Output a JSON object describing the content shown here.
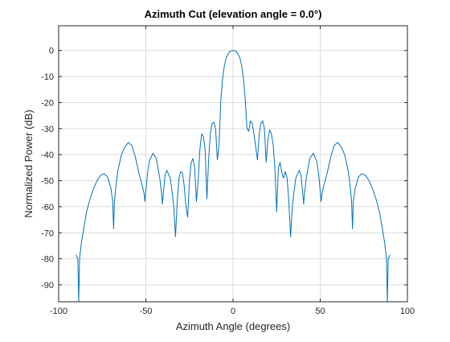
{
  "chart_data": {
    "type": "line",
    "title": "Azimuth Cut (elevation angle = 0.0°)",
    "xlabel": "Azimuth Angle (degrees)",
    "ylabel": "Normalized Power (dB)",
    "xlim": [
      -100,
      100
    ],
    "ylim": [
      -96.5,
      9.5
    ],
    "xticks": [
      -100,
      -50,
      0,
      50,
      100
    ],
    "xtick_labels": [
      "-100",
      "-50",
      "0",
      "50",
      "100"
    ],
    "yticks": [
      0,
      -10,
      -20,
      -30,
      -40,
      -50,
      -60,
      -70,
      -80,
      -90
    ],
    "ytick_labels": [
      "0",
      "-10",
      "-20",
      "-30",
      "-40",
      "-50",
      "-60",
      "-70",
      "-80",
      "-90"
    ],
    "grid": true,
    "series": [
      {
        "color": "#0072bd",
        "x": [
          -90,
          -89,
          -88.5,
          -88,
          -87,
          -86,
          -85,
          -84,
          -82,
          -80,
          -78,
          -76,
          -74,
          -72,
          -70,
          -69,
          -68.5,
          -68,
          -67,
          -66,
          -64,
          -62,
          -60,
          -58,
          -56,
          -54,
          -52,
          -51,
          -50.5,
          -50,
          -49,
          -48,
          -46,
          -44,
          -42,
          -41,
          -40.5,
          -40,
          -39,
          -38,
          -36,
          -35,
          -34,
          -33,
          -32,
          -31,
          -30,
          -29,
          -28,
          -27,
          -26,
          -25,
          -24,
          -23,
          -22,
          -21,
          -20,
          -19,
          -18,
          -17,
          -16,
          -15,
          -14,
          -13,
          -12,
          -11,
          -10,
          -9,
          -8,
          -7,
          -6,
          -5,
          -4,
          -3,
          -2,
          -1,
          0,
          1,
          2,
          3,
          4,
          5,
          6,
          7,
          8,
          9,
          10,
          11,
          12,
          13,
          14,
          15,
          16,
          17,
          18,
          19,
          20,
          21,
          22,
          23,
          24,
          25,
          26,
          27,
          28,
          29,
          30,
          31,
          32,
          33,
          34,
          35,
          36,
          38,
          39,
          40,
          40.5,
          41,
          42,
          44,
          46,
          48,
          49,
          50,
          50.5,
          51,
          52,
          54,
          56,
          58,
          60,
          62,
          64,
          66,
          67,
          68,
          68.5,
          69,
          70,
          72,
          74,
          76,
          78,
          80,
          82,
          84,
          85,
          86,
          87,
          88,
          88.5,
          89,
          90
        ],
        "y": [
          -78.5,
          -80,
          -96.5,
          -80,
          -74,
          -70,
          -66,
          -62,
          -57,
          -53,
          -50,
          -48,
          -47.3,
          -48.5,
          -53,
          -58,
          -68.5,
          -58,
          -51,
          -46,
          -40,
          -37,
          -35.3,
          -36.5,
          -41,
          -47,
          -52,
          -55,
          -58,
          -54,
          -47,
          -42.5,
          -39.5,
          -41.5,
          -49,
          -55,
          -59,
          -55,
          -48,
          -46,
          -49,
          -54,
          -60,
          -71.5,
          -58,
          -49,
          -46.5,
          -47,
          -52,
          -60,
          -64,
          -50,
          -43,
          -41.5,
          -45,
          -58,
          -50,
          -38,
          -32,
          -33,
          -38,
          -57,
          -42,
          -32,
          -28,
          -27.5,
          -30,
          -42,
          -36,
          -19,
          -11,
          -6,
          -3,
          -1.5,
          -0.5,
          -0.1,
          0,
          -0.1,
          -0.5,
          -1.5,
          -3,
          -6,
          -11,
          -19,
          -30,
          -31,
          -27,
          -28,
          -32,
          -37,
          -42,
          -32,
          -28,
          -27,
          -30,
          -43,
          -34,
          -30.5,
          -32,
          -36,
          -45,
          -62,
          -45,
          -43,
          -47,
          -49,
          -46.5,
          -49,
          -58,
          -71.5,
          -60,
          -54,
          -49,
          -46,
          -48,
          -55,
          -59,
          -55,
          -49,
          -41.5,
          -39.5,
          -42.5,
          -47,
          -54,
          -58,
          -55,
          -52,
          -47,
          -41,
          -36.5,
          -35.3,
          -37,
          -40,
          -46,
          -51,
          -58,
          -68.5,
          -58,
          -53,
          -48.5,
          -47.3,
          -48,
          -50,
          -53,
          -57,
          -62,
          -66,
          -70,
          -74,
          -80,
          -96.5,
          -80,
          -78.5
        ]
      }
    ]
  }
}
